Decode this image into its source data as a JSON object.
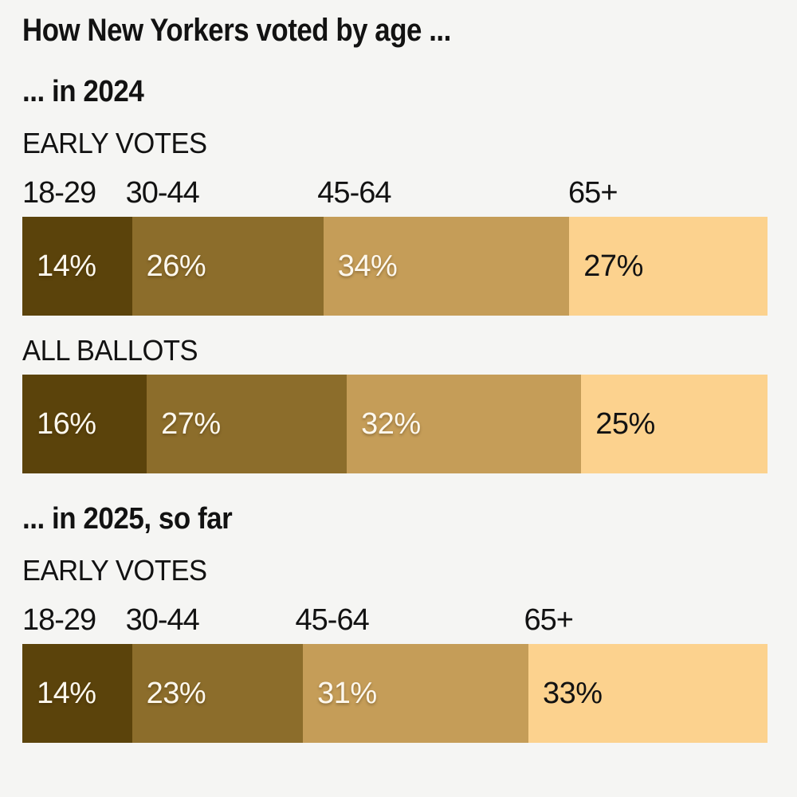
{
  "page": {
    "background": "#f5f5f3",
    "text_color": "#121212"
  },
  "chart_data": {
    "type": "bar",
    "variant": "horizontal-stacked-percent",
    "title": "How New Yorkers voted by age ...",
    "unit": "%",
    "categories": [
      "18-29",
      "30-44",
      "45-64",
      "65+"
    ],
    "colors": [
      "#5b430b",
      "#8c6d2b",
      "#c59d58",
      "#fcd28e"
    ],
    "value_text_colors": [
      "#fdf8ee",
      "#fdf8ee",
      "#fdf8ee",
      "#121212"
    ],
    "legend_position": "above-bar-inline",
    "grid": false,
    "sections": [
      {
        "heading": "... in 2024",
        "bars": [
          {
            "label": "EARLY VOTES",
            "show_category_labels": true,
            "values": [
              14,
              26,
              34,
              27
            ]
          },
          {
            "label": "ALL BALLOTS",
            "show_category_labels": false,
            "values": [
              16,
              27,
              32,
              25
            ]
          }
        ]
      },
      {
        "heading": "... in 2025, so far",
        "bars": [
          {
            "label": "EARLY VOTES",
            "show_category_labels": true,
            "values": [
              14,
              23,
              31,
              33
            ]
          }
        ]
      }
    ]
  }
}
